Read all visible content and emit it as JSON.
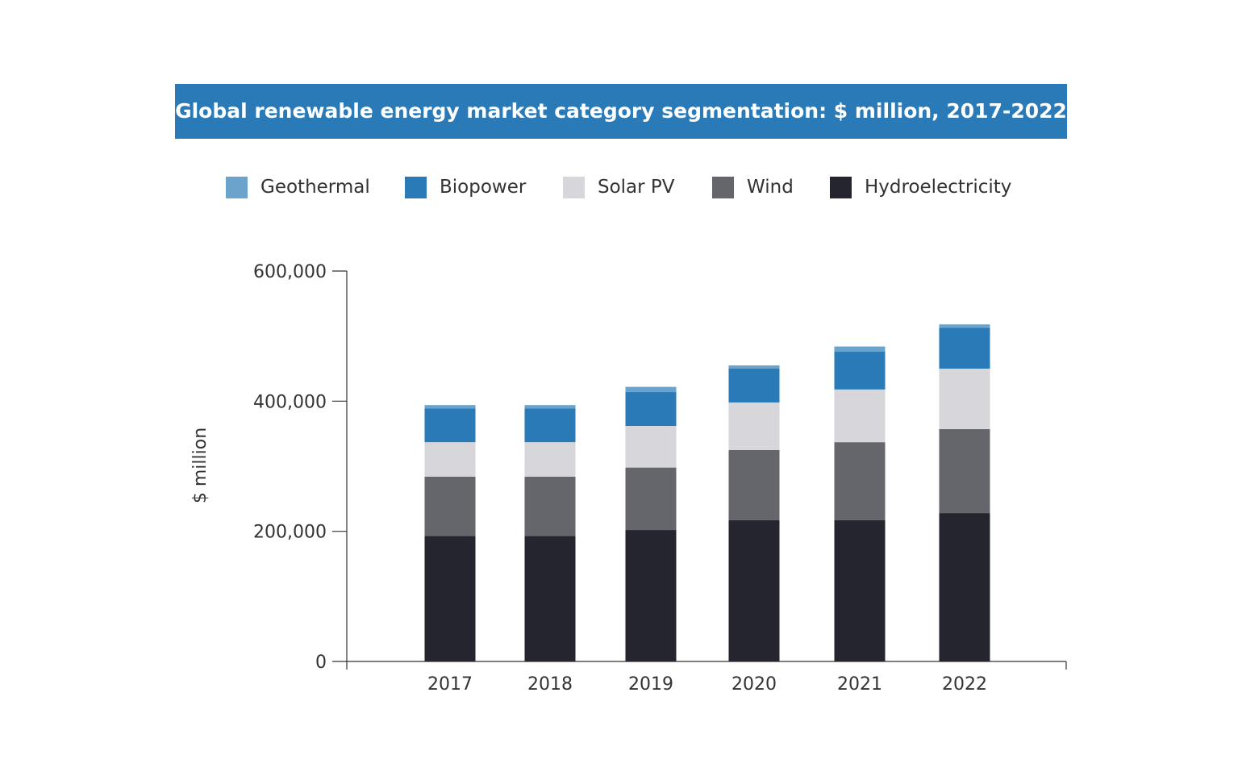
{
  "chart_data": {
    "type": "bar",
    "stacked": true,
    "title": "Global renewable energy market category segmentation: $ million, 2017-2022",
    "xlabel": "",
    "ylabel": "$ million",
    "ylim": [
      0,
      600000
    ],
    "yticks": [
      0,
      200000,
      400000,
      600000
    ],
    "ytick_labels": [
      "0",
      "200,000",
      "400,000",
      "600,000"
    ],
    "categories": [
      "2017",
      "2018",
      "2019",
      "2020",
      "2021",
      "2022"
    ],
    "legend_position": "top",
    "grid": false,
    "series": [
      {
        "name": "Hydroelectricity",
        "color": "#24252e",
        "values": [
          193000,
          193000,
          202000,
          217000,
          217000,
          228000
        ]
      },
      {
        "name": "Wind",
        "color": "#65666b",
        "values": [
          91000,
          91000,
          96000,
          108000,
          120000,
          129000
        ]
      },
      {
        "name": "Solar PV",
        "color": "#d6d6db",
        "values": [
          53000,
          53000,
          64000,
          73000,
          81000,
          93000
        ]
      },
      {
        "name": "Biopower",
        "color": "#2a7ab8",
        "values": [
          52000,
          52000,
          52000,
          52000,
          58000,
          63000
        ]
      },
      {
        "name": "Geothermal",
        "color": "#6aa3cc",
        "values": [
          5000,
          5000,
          8000,
          5000,
          8000,
          5000
        ]
      }
    ],
    "legend_order": [
      "Geothermal",
      "Biopower",
      "Solar PV",
      "Wind",
      "Hydroelectricity"
    ]
  }
}
